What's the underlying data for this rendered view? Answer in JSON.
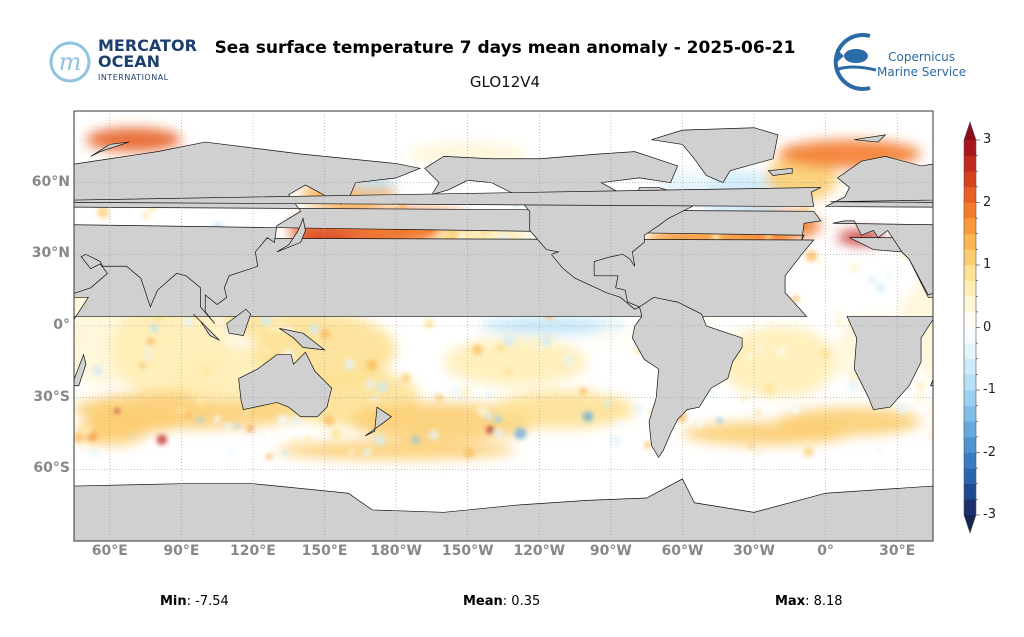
{
  "header": {
    "title": "Sea surface temperature 7 days mean anomaly - 2025-06-21",
    "subtitle": "GLO12V4",
    "logo_left": {
      "line1": "MERCATOR",
      "line2": "OCEAN",
      "line3": "INTERNATIONAL"
    },
    "logo_right": {
      "line1": "Copernicus",
      "line2": "Marine Service"
    }
  },
  "map": {
    "projection": "equirectangular",
    "lon_range": [
      45,
      405
    ],
    "lat_range": [
      -90,
      90
    ],
    "grid": true,
    "land_color": "#d0d0d0",
    "lat_labels": [
      {
        "lat": 60,
        "label": "60°N"
      },
      {
        "lat": 30,
        "label": "30°N"
      },
      {
        "lat": 0,
        "label": "0°"
      },
      {
        "lat": -30,
        "label": "30°S"
      },
      {
        "lat": -60,
        "label": "60°S"
      }
    ],
    "lon_labels": [
      {
        "lon": 60,
        "label": "60°E"
      },
      {
        "lon": 90,
        "label": "90°E"
      },
      {
        "lon": 120,
        "label": "120°E"
      },
      {
        "lon": 150,
        "label": "150°E"
      },
      {
        "lon": 180,
        "label": "180°W"
      },
      {
        "lon": 210,
        "label": "150°W"
      },
      {
        "lon": 240,
        "label": "120°W"
      },
      {
        "lon": 270,
        "label": "90°W"
      },
      {
        "lon": 300,
        "label": "60°W"
      },
      {
        "lon": 330,
        "label": "30°W"
      },
      {
        "lon": 360,
        "label": "0°"
      },
      {
        "lon": 390,
        "label": "30°E"
      }
    ]
  },
  "colorbar": {
    "range": [
      -3,
      3
    ],
    "step": 0.25,
    "extend": "both",
    "ticks": [
      {
        "v": 3,
        "label": "3"
      },
      {
        "v": 2,
        "label": "2"
      },
      {
        "v": 1,
        "label": "1"
      },
      {
        "v": 0,
        "label": "0"
      },
      {
        "v": -1,
        "label": "-1"
      },
      {
        "v": -2,
        "label": "-2"
      },
      {
        "v": -3,
        "label": "-3"
      }
    ],
    "colors": [
      "#1a2f6b",
      "#1f4a8f",
      "#2a64ad",
      "#3a7cc0",
      "#4f93cf",
      "#66a9dc",
      "#80bfe8",
      "#9bd1f0",
      "#b5e0f5",
      "#cdebf8",
      "#e3f4fb",
      "#f5fbfe",
      "#fffdf5",
      "#fff6d8",
      "#ffeeb6",
      "#fde194",
      "#fcce72",
      "#fbb552",
      "#f89a3c",
      "#f37c2c",
      "#e75f24",
      "#d6421f",
      "#c22a1f",
      "#a8151f"
    ],
    "under_color": "#15244f",
    "over_color": "#8e0b1a"
  },
  "stats": {
    "min_label": "Min",
    "min_value": ": -7.54",
    "mean_label": "Mean",
    "mean_value": ": 0.35",
    "max_label": "Max",
    "max_value": ": 8.18"
  }
}
